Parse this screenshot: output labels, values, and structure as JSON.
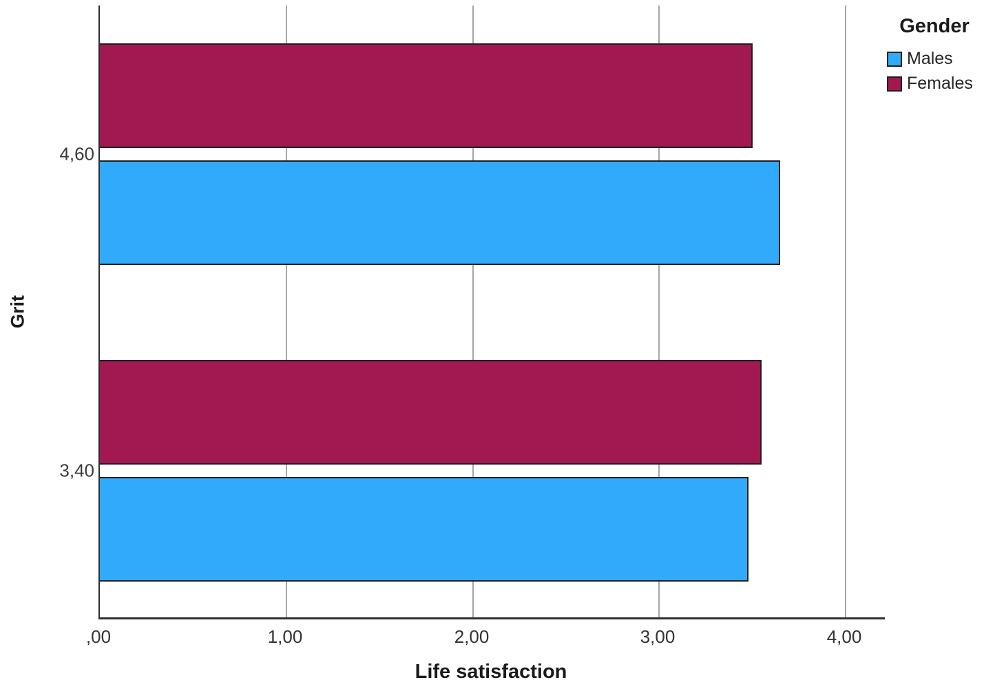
{
  "chart_data": {
    "type": "bar",
    "orientation": "horizontal",
    "title": "",
    "xlabel": "Life satisfaction",
    "ylabel": "Grit",
    "legend_title": "Gender",
    "legend_position": "top-right",
    "categories": [
      "4,60",
      "3,40"
    ],
    "series": [
      {
        "name": "Males",
        "color": "#31AAFB",
        "values": [
          3.65,
          3.48
        ]
      },
      {
        "name": "Females",
        "color": "#A21850",
        "values": [
          3.5,
          3.55
        ]
      }
    ],
    "bar_order_top_to_bottom": [
      "Females",
      "Males"
    ],
    "x_ticks": [
      {
        "value": 0,
        "label": ",00"
      },
      {
        "value": 1,
        "label": "1,00"
      },
      {
        "value": 2,
        "label": "2,00"
      },
      {
        "value": 3,
        "label": "3,00"
      },
      {
        "value": 4,
        "label": "4,00"
      }
    ],
    "xlim": [
      0,
      4.21
    ],
    "grid": "vertical",
    "styles": {
      "bar_border_color": "#1f1f1f",
      "grid_color": "#a6a6a6",
      "axis_color": "#2e2e2e",
      "text_color": "#333333",
      "background": "#ffffff"
    }
  }
}
